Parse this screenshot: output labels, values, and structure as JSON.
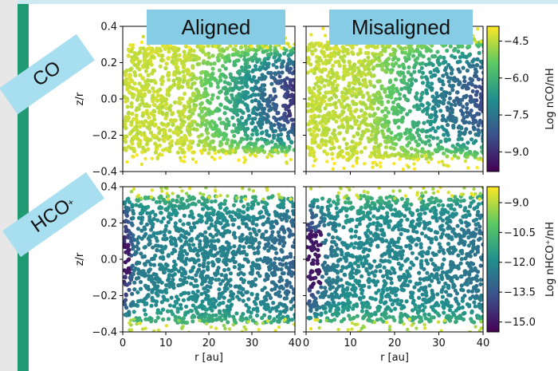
{
  "labels": {
    "col_aligned": "Aligned",
    "col_misaligned": "Misaligned",
    "row_co": "CO",
    "row_hco_base": "HCO",
    "row_hco_sup": "+",
    "ylabel": "z/r",
    "xlabel": "r [au]"
  },
  "colors": {
    "frame_stripe": "#1f9a72",
    "frame_gray": "#e7e7e7",
    "label_box": "#86cce4",
    "ribbon": "#a7dff0",
    "colormap": [
      "#440154",
      "#3b528b",
      "#21908d",
      "#5dc962",
      "#fde725"
    ]
  },
  "chart_data": [
    {
      "type": "scatter",
      "panel": "CO aligned",
      "title": "Aligned",
      "xlabel": "",
      "ylabel": "z/r",
      "xlim": [
        0,
        40
      ],
      "ylim": [
        -0.4,
        0.4
      ],
      "xticks": [
        0,
        10,
        20,
        30,
        40
      ],
      "yticks": [
        "0.4",
        "0.2",
        "0.0",
        "−0.2",
        "−0.4"
      ],
      "quantity": "Log nCO/nH",
      "disk": {
        "yr": 0.28,
        "tail": 0.48
      },
      "field": [
        {
          "r": 0,
          "v": -4.4
        },
        {
          "r": 15,
          "v": -4.5
        },
        {
          "r": 24,
          "v": -6.0
        },
        {
          "r": 32,
          "v": -7.5
        },
        {
          "r": 40,
          "v": -9.0
        }
      ],
      "inner_core": null
    },
    {
      "type": "scatter",
      "panel": "CO misaligned",
      "title": "Misaligned",
      "xlabel": "",
      "ylabel": "",
      "xlim": [
        0,
        40
      ],
      "ylim": [
        -0.4,
        0.4
      ],
      "xticks": [
        0,
        10,
        20,
        30,
        40
      ],
      "yticks": [],
      "quantity": "Log nCO/nH",
      "disk": {
        "yr": 0.31,
        "tail": 0.48
      },
      "field": [
        {
          "r": 0,
          "v": -4.4
        },
        {
          "r": 14,
          "v": -4.6
        },
        {
          "r": 24,
          "v": -6.2
        },
        {
          "r": 32,
          "v": -7.6
        },
        {
          "r": 40,
          "v": -8.4
        }
      ],
      "inner_core": null
    },
    {
      "type": "scatter",
      "panel": "HCO+ aligned",
      "title": "",
      "xlabel": "r [au]",
      "ylabel": "z/r",
      "xlim": [
        0,
        40
      ],
      "ylim": [
        -0.4,
        0.4
      ],
      "xticks": [
        0,
        10,
        20,
        30,
        40
      ],
      "yticks": [
        "0.4",
        "0.2",
        "0.0",
        "−0.2",
        "−0.4"
      ],
      "quantity": "Log nHCO+/nH",
      "disk": {
        "yr": 0.33,
        "tail": 0.45
      },
      "field": [
        {
          "r": 0,
          "v": -14.8
        },
        {
          "r": 3,
          "v": -12.6
        },
        {
          "r": 10,
          "v": -12.2
        },
        {
          "r": 30,
          "v": -12.4
        },
        {
          "r": 40,
          "v": -13.2
        }
      ],
      "inner_core": {
        "r0": 0,
        "r1": 1.5,
        "z": 0.09,
        "v": -15.0
      }
    },
    {
      "type": "scatter",
      "panel": "HCO+ misaligned",
      "title": "",
      "xlabel": "r [au]",
      "ylabel": "",
      "xlim": [
        0,
        40
      ],
      "ylim": [
        -0.4,
        0.4
      ],
      "xticks": [
        0,
        10,
        20,
        30,
        40
      ],
      "yticks": [],
      "quantity": "Log nHCO+/nH",
      "disk": {
        "yr": 0.33,
        "tail": 0.45
      },
      "field": [
        {
          "r": 0,
          "v": -14.5
        },
        {
          "r": 4,
          "v": -12.8
        },
        {
          "r": 10,
          "v": -12.0
        },
        {
          "r": 30,
          "v": -12.3
        },
        {
          "r": 40,
          "v": -12.8
        }
      ],
      "inner_core": {
        "r0": 0,
        "r1": 3,
        "z": 0.16,
        "v": -15.0
      }
    }
  ],
  "colorbars": [
    {
      "label": "Log nCO/nH",
      "range": [
        -9.8,
        -3.9
      ],
      "ticks": [
        "−4.5",
        "−6.0",
        "−7.5",
        "−9.0"
      ],
      "tick_values": [
        -4.5,
        -6.0,
        -7.5,
        -9.0
      ]
    },
    {
      "label": "Log nHCO⁺/nH",
      "range": [
        -15.5,
        -8.2
      ],
      "ticks": [
        "−9.0",
        "−10.5",
        "−12.0",
        "−13.5",
        "−15.0"
      ],
      "tick_values": [
        -9.0,
        -10.5,
        -12.0,
        -13.5,
        -15.0
      ]
    }
  ]
}
